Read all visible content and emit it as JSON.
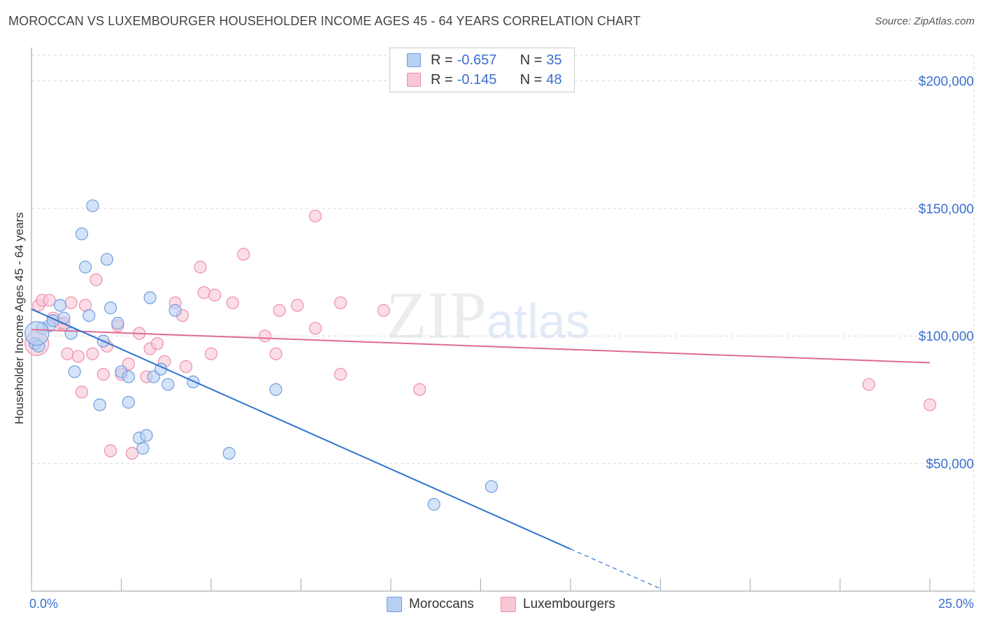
{
  "title": "MOROCCAN VS LUXEMBOURGER HOUSEHOLDER INCOME AGES 45 - 64 YEARS CORRELATION CHART",
  "source": "Source: ZipAtlas.com",
  "watermark": {
    "main": "ZIP",
    "sub": "atlas"
  },
  "legend": {
    "rows": [
      {
        "r_label": "R = ",
        "r_value": "-0.657",
        "n_label": "N = ",
        "n_value": "35"
      },
      {
        "r_label": "R = ",
        "r_value": "-0.145",
        "n_label": "N = ",
        "n_value": "48"
      }
    ]
  },
  "bottom_legend": [
    "Moroccans",
    "Luxembourgers"
  ],
  "colors": {
    "blue_fill": "#b8d0f2",
    "blue_stroke": "#6f9ee0",
    "blue_line": "#2f74d0",
    "pink_fill": "#f9c6d4",
    "pink_stroke": "#ee8fac",
    "pink_line": "#e06a93",
    "grid": "#d9d9d9",
    "tick_text": "#3a6fd1"
  },
  "chart_data": {
    "type": "scatter",
    "title": "MOROCCAN VS LUXEMBOURGER HOUSEHOLDER INCOME AGES 45 - 64 YEARS CORRELATION CHART",
    "xlabel": "",
    "ylabel": "Householder Income Ages 45 - 64 years",
    "xlim": [
      0,
      25
    ],
    "ylim": [
      0,
      210000
    ],
    "x_tick_labels": [
      "0.0%",
      "25.0%"
    ],
    "y_ticks": [
      {
        "value": 200000,
        "label": "$200,000"
      },
      {
        "value": 150000,
        "label": "$150,000"
      },
      {
        "value": 100000,
        "label": "$100,000"
      },
      {
        "value": 50000,
        "label": "$50,000"
      }
    ],
    "series": [
      {
        "name": "Moroccans",
        "color": "blue",
        "r": -0.657,
        "n": 35,
        "points": [
          [
            0.1,
            97000
          ],
          [
            0.2,
            96000
          ],
          [
            0.3,
            103000
          ],
          [
            0.5,
            104000
          ],
          [
            0.6,
            106000
          ],
          [
            0.8,
            112000
          ],
          [
            0.9,
            107000
          ],
          [
            1.1,
            101000
          ],
          [
            1.2,
            86000
          ],
          [
            1.4,
            140000
          ],
          [
            1.5,
            127000
          ],
          [
            1.6,
            108000
          ],
          [
            1.7,
            151000
          ],
          [
            1.9,
            73000
          ],
          [
            2.0,
            98000
          ],
          [
            2.1,
            130000
          ],
          [
            2.2,
            111000
          ],
          [
            2.4,
            105000
          ],
          [
            2.5,
            86000
          ],
          [
            2.7,
            84000
          ],
          [
            2.7,
            74000
          ],
          [
            3.0,
            60000
          ],
          [
            3.1,
            56000
          ],
          [
            3.2,
            61000
          ],
          [
            3.3,
            115000
          ],
          [
            3.4,
            84000
          ],
          [
            3.6,
            87000
          ],
          [
            3.8,
            81000
          ],
          [
            4.0,
            110000
          ],
          [
            4.5,
            82000
          ],
          [
            5.5,
            54000
          ],
          [
            6.8,
            79000
          ],
          [
            11.2,
            34000
          ],
          [
            12.8,
            41000
          ],
          [
            0.15,
            101000
          ]
        ],
        "trend": {
          "x0": 0,
          "y0": 110500,
          "x1": 15.0,
          "y1": 16500,
          "dash_to_x": 17.5,
          "dash_to_y": 1000
        }
      },
      {
        "name": "Luxembourgers",
        "color": "pink",
        "r": -0.145,
        "n": 48,
        "points": [
          [
            0.1,
            97000
          ],
          [
            0.2,
            112000
          ],
          [
            0.3,
            114000
          ],
          [
            0.5,
            114000
          ],
          [
            0.6,
            107000
          ],
          [
            0.8,
            105000
          ],
          [
            0.9,
            105000
          ],
          [
            1.0,
            93000
          ],
          [
            1.1,
            113000
          ],
          [
            1.3,
            92000
          ],
          [
            1.4,
            78000
          ],
          [
            1.5,
            112000
          ],
          [
            1.7,
            93000
          ],
          [
            1.8,
            122000
          ],
          [
            2.0,
            85000
          ],
          [
            2.1,
            96000
          ],
          [
            2.2,
            55000
          ],
          [
            2.4,
            104000
          ],
          [
            2.5,
            85000
          ],
          [
            2.7,
            89000
          ],
          [
            2.8,
            54000
          ],
          [
            3.0,
            101000
          ],
          [
            3.2,
            84000
          ],
          [
            3.3,
            95000
          ],
          [
            3.5,
            97000
          ],
          [
            3.7,
            90000
          ],
          [
            4.0,
            113000
          ],
          [
            4.2,
            108000
          ],
          [
            4.3,
            88000
          ],
          [
            4.7,
            127000
          ],
          [
            4.8,
            117000
          ],
          [
            5.0,
            93000
          ],
          [
            5.1,
            116000
          ],
          [
            5.6,
            113000
          ],
          [
            5.9,
            132000
          ],
          [
            6.5,
            100000
          ],
          [
            6.8,
            93000
          ],
          [
            6.9,
            110000
          ],
          [
            7.4,
            112000
          ],
          [
            7.9,
            103000
          ],
          [
            7.9,
            147000
          ],
          [
            8.6,
            85000
          ],
          [
            8.6,
            113000
          ],
          [
            9.8,
            110000
          ],
          [
            10.8,
            79000
          ],
          [
            23.3,
            81000
          ],
          [
            25.0,
            73000
          ],
          [
            0.15,
            97000
          ]
        ],
        "trend": {
          "x0": 0,
          "y0": 102500,
          "x1": 25.0,
          "y1": 89500
        }
      }
    ]
  }
}
